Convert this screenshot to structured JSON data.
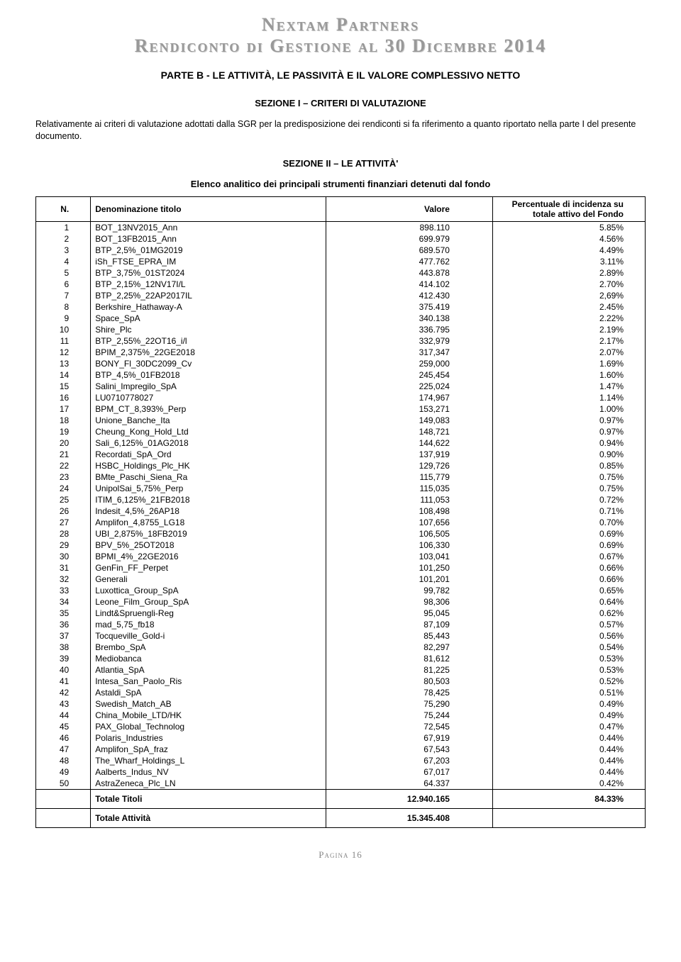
{
  "header": {
    "title1": "Nextam Partners",
    "title2": "Rendiconto di Gestione al 30 Dicembre 2014",
    "part": "PARTE B - LE ATTIVITÀ, LE PASSIVITÀ E IL VALORE COMPLESSIVO NETTO",
    "section1": "SEZIONE I – CRITERI DI VALUTAZIONE",
    "para": "Relativamente ai criteri di valutazione adottati dalla SGR per la predisposizione dei rendiconti si fa riferimento a quanto riportato nella parte I del presente documento.",
    "section2": "SEZIONE II – LE ATTIVITÀ'",
    "sub": "Elenco analitico dei principali strumenti finanziari detenuti dal fondo"
  },
  "table": {
    "head_n": "N.",
    "head_name": "Denominazione titolo",
    "head_val": "Valore",
    "head_pct": "Percentuale di incidenza su totale attivo del Fondo",
    "rows": [
      {
        "n": "1",
        "name": "BOT_13NV2015_Ann",
        "val": "898.110",
        "pct": "5.85%"
      },
      {
        "n": "2",
        "name": "BOT_13FB2015_Ann",
        "val": "699.979",
        "pct": "4.56%"
      },
      {
        "n": "3",
        "name": "BTP_2,5%_01MG2019",
        "val": "689.570",
        "pct": "4.49%"
      },
      {
        "n": "4",
        "name": "iSh_FTSE_EPRA_IM",
        "val": "477.762",
        "pct": "3.11%"
      },
      {
        "n": "5",
        "name": "BTP_3,75%_01ST2024",
        "val": "443.878",
        "pct": "2.89%"
      },
      {
        "n": "6",
        "name": "BTP_2,15%_12NV17I/L",
        "val": "414.102",
        "pct": "2.70%"
      },
      {
        "n": "7",
        "name": "BTP_2,25%_22AP2017IL",
        "val": "412.430",
        "pct": "2,69%"
      },
      {
        "n": "8",
        "name": "Berkshire_Hathaway-A",
        "val": "375.419",
        "pct": "2.45%"
      },
      {
        "n": "9",
        "name": "Space_SpA",
        "val": "340.138",
        "pct": "2.22%"
      },
      {
        "n": "10",
        "name": "Shire_Plc",
        "val": "336.795",
        "pct": "2.19%"
      },
      {
        "n": "11",
        "name": "BTP_2,55%_22OT16_i/l",
        "val": "332,979",
        "pct": "2.17%"
      },
      {
        "n": "12",
        "name": "BPIM_2,375%_22GE2018",
        "val": "317,347",
        "pct": "2.07%"
      },
      {
        "n": "13",
        "name": "BONY_Fl_30DC2099_Cv",
        "val": "259,000",
        "pct": "1.69%"
      },
      {
        "n": "14",
        "name": "BTP_4,5%_01FB2018",
        "val": "245,454",
        "pct": "1.60%"
      },
      {
        "n": "15",
        "name": "Salini_Impregilo_SpA",
        "val": "225,024",
        "pct": "1.47%"
      },
      {
        "n": "16",
        "name": "LU0710778027",
        "val": "174,967",
        "pct": "1.14%"
      },
      {
        "n": "17",
        "name": "BPM_CT_8,393%_Perp",
        "val": "153,271",
        "pct": "1.00%"
      },
      {
        "n": "18",
        "name": "Unione_Banche_Ita",
        "val": "149,083",
        "pct": "0.97%"
      },
      {
        "n": "19",
        "name": "Cheung_Kong_Hold_Ltd",
        "val": "148,721",
        "pct": "0.97%"
      },
      {
        "n": "20",
        "name": "Sali_6,125%_01AG2018",
        "val": "144,622",
        "pct": "0.94%"
      },
      {
        "n": "21",
        "name": "Recordati_SpA_Ord",
        "val": "137,919",
        "pct": "0.90%"
      },
      {
        "n": "22",
        "name": "HSBC_Holdings_Plc_HK",
        "val": "129,726",
        "pct": "0.85%"
      },
      {
        "n": "23",
        "name": "BMte_Paschi_Siena_Ra",
        "val": "115,779",
        "pct": "0.75%"
      },
      {
        "n": "24",
        "name": "UnipolSai_5,75%_Perp",
        "val": "115,035",
        "pct": "0.75%"
      },
      {
        "n": "25",
        "name": "ITIM_6,125%_21FB2018",
        "val": "111,053",
        "pct": "0.72%"
      },
      {
        "n": "26",
        "name": "Indesit_4,5%_26AP18",
        "val": "108,498",
        "pct": "0.71%"
      },
      {
        "n": "27",
        "name": "Amplifon_4,8755_LG18",
        "val": "107,656",
        "pct": "0.70%"
      },
      {
        "n": "28",
        "name": "UBI_2,875%_18FB2019",
        "val": "106,505",
        "pct": "0.69%"
      },
      {
        "n": "29",
        "name": "BPV_5%_25OT2018",
        "val": "106,330",
        "pct": "0.69%"
      },
      {
        "n": "30",
        "name": "BPMI_4%_22GE2016",
        "val": "103,041",
        "pct": "0.67%"
      },
      {
        "n": "31",
        "name": "GenFin_FF_Perpet",
        "val": "101,250",
        "pct": "0.66%"
      },
      {
        "n": "32",
        "name": "Generali",
        "val": "101,201",
        "pct": "0.66%"
      },
      {
        "n": "33",
        "name": "Luxottica_Group_SpA",
        "val": "99,782",
        "pct": "0.65%"
      },
      {
        "n": "34",
        "name": "Leone_Film_Group_SpA",
        "val": "98,306",
        "pct": "0.64%"
      },
      {
        "n": "35",
        "name": "Lindt&Spruengli-Reg",
        "val": "95,045",
        "pct": "0.62%"
      },
      {
        "n": "36",
        "name": "mad_5,75_fb18",
        "val": "87,109",
        "pct": "0.57%"
      },
      {
        "n": "37",
        "name": "Tocqueville_Gold-i",
        "val": "85,443",
        "pct": "0.56%"
      },
      {
        "n": "38",
        "name": "Brembo_SpA",
        "val": "82,297",
        "pct": "0.54%"
      },
      {
        "n": "39",
        "name": "Mediobanca",
        "val": "81,612",
        "pct": "0.53%"
      },
      {
        "n": "40",
        "name": "Atlantia_SpA",
        "val": "81,225",
        "pct": "0.53%"
      },
      {
        "n": "41",
        "name": "Intesa_San_Paolo_Ris",
        "val": "80,503",
        "pct": "0.52%"
      },
      {
        "n": "42",
        "name": "Astaldi_SpA",
        "val": "78,425",
        "pct": "0.51%"
      },
      {
        "n": "43",
        "name": "Swedish_Match_AB",
        "val": "75,290",
        "pct": "0.49%"
      },
      {
        "n": "44",
        "name": "China_Mobile_LTD/HK",
        "val": "75,244",
        "pct": "0.49%"
      },
      {
        "n": "45",
        "name": "PAX_Global_Technolog",
        "val": "72,545",
        "pct": "0.47%"
      },
      {
        "n": "46",
        "name": "Polaris_Industries",
        "val": "67,919",
        "pct": "0.44%"
      },
      {
        "n": "47",
        "name": "Amplifon_SpA_fraz",
        "val": "67,543",
        "pct": "0.44%"
      },
      {
        "n": "48",
        "name": "The_Wharf_Holdings_L",
        "val": "67,203",
        "pct": "0.44%"
      },
      {
        "n": "49",
        "name": "Aalberts_Indus_NV",
        "val": "67,017",
        "pct": "0.44%"
      },
      {
        "n": "50",
        "name": "AstraZeneca_Plc_LN",
        "val": "64.337",
        "pct": "0.42%"
      }
    ],
    "total_titles_label": "Totale Titoli",
    "total_titles_val": "12.940.165",
    "total_titles_pct": "84.33%",
    "total_assets_label": "Totale Attività",
    "total_assets_val": "15.345.408"
  },
  "footer": {
    "page": "Pagina 16"
  }
}
